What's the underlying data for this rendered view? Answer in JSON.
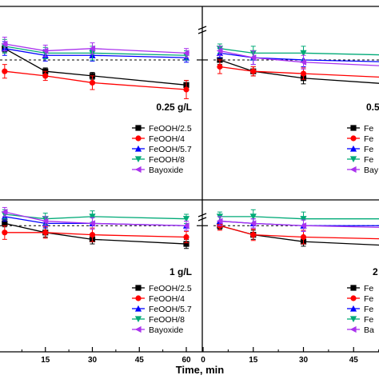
{
  "figure": {
    "xlabel": "Time, min"
  },
  "chart_data": [
    {
      "type": "line",
      "panel": "top-left",
      "annotation": "0.25 g/L",
      "xlim": [
        0,
        62
      ],
      "ylim": [
        0,
        10
      ],
      "x_ticks": [],
      "x_tick_labels": [],
      "legend_placement": "bottom-right",
      "series": [
        {
          "name": "FeOOH/2.5",
          "color": "#000000",
          "marker": "square",
          "x": [
            2,
            15,
            30,
            60
          ],
          "y": [
            6.8,
            5.8,
            5.6,
            5.2
          ],
          "err": [
            0.15,
            0.15,
            0.15,
            0.2
          ]
        },
        {
          "name": "FeOOH/4",
          "color": "#ff0000",
          "marker": "circle",
          "x": [
            2,
            15,
            30,
            60
          ],
          "y": [
            5.8,
            5.6,
            5.3,
            5.0
          ],
          "err": [
            0.3,
            0.2,
            0.3,
            0.4
          ]
        },
        {
          "name": "FeOOH/5.7",
          "color": "#0000ff",
          "marker": "triangle-up",
          "x": [
            2,
            15,
            30,
            60
          ],
          "y": [
            6.8,
            6.5,
            6.5,
            6.4
          ],
          "err": [
            0.3,
            0.25,
            0.25,
            0.2
          ]
        },
        {
          "name": "FeOOH/8",
          "color": "#00aa77",
          "marker": "triangle-down",
          "x": [
            2,
            15,
            30,
            60
          ],
          "y": [
            6.9,
            6.6,
            6.6,
            6.5
          ],
          "err": [
            0.3,
            0.25,
            0.3,
            0.2
          ]
        },
        {
          "name": "Bayoxide",
          "color": "#aa33ee",
          "marker": "triangle-left",
          "x": [
            2,
            15,
            30,
            60
          ],
          "y": [
            7.0,
            6.7,
            6.8,
            6.6
          ],
          "err": [
            0.3,
            0.25,
            0.25,
            0.2
          ]
        }
      ]
    },
    {
      "type": "line",
      "panel": "top-right",
      "annotation": "0.5",
      "xlim": [
        0,
        62
      ],
      "ylim": [
        0,
        10
      ],
      "x_ticks": [],
      "x_tick_labels": [],
      "legend_placement": "bottom-right",
      "series": [
        {
          "name": "Fe",
          "color": "#000000",
          "marker": "square",
          "x": [
            5,
            15,
            30,
            60
          ],
          "y": [
            6.3,
            5.8,
            5.5,
            5.2
          ],
          "err": [
            0.2,
            0.2,
            0.25,
            0.3
          ]
        },
        {
          "name": "Fe",
          "color": "#ff0000",
          "marker": "circle",
          "x": [
            5,
            15,
            30,
            60
          ],
          "y": [
            6.0,
            5.8,
            5.7,
            5.5
          ],
          "err": [
            0.3,
            0.2,
            0.25,
            0.3
          ]
        },
        {
          "name": "Fe",
          "color": "#0000ff",
          "marker": "triangle-up",
          "x": [
            5,
            15,
            30,
            60
          ],
          "y": [
            6.6,
            6.4,
            6.3,
            6.2
          ],
          "err": [
            0.2,
            0.3,
            0.3,
            0.2
          ]
        },
        {
          "name": "Fe",
          "color": "#00aa77",
          "marker": "triangle-down",
          "x": [
            5,
            15,
            30,
            60
          ],
          "y": [
            6.8,
            6.6,
            6.6,
            6.5
          ],
          "err": [
            0.2,
            0.3,
            0.3,
            0.2
          ]
        },
        {
          "name": "Bay",
          "color": "#aa33ee",
          "marker": "triangle-left",
          "x": [
            5,
            15,
            30,
            60
          ],
          "y": [
            6.7,
            6.4,
            6.2,
            6.0
          ],
          "err": [
            0.2,
            0.3,
            0.3,
            0.2
          ]
        }
      ]
    },
    {
      "type": "line",
      "panel": "bottom-left",
      "annotation": "1 g/L",
      "xlim": [
        0,
        62
      ],
      "ylim": [
        0,
        10
      ],
      "x_ticks": [
        15,
        30,
        45,
        60
      ],
      "x_tick_labels": [
        "15",
        "30",
        "45",
        "60"
      ],
      "legend_placement": "bottom-right",
      "series": [
        {
          "name": "FeOOH/2.5",
          "color": "#000000",
          "marker": "square",
          "x": [
            2,
            15,
            30,
            60
          ],
          "y": [
            6.6,
            6.2,
            5.9,
            5.7
          ],
          "err": [
            0.15,
            0.2,
            0.2,
            0.2
          ]
        },
        {
          "name": "FeOOH/4",
          "color": "#ff0000",
          "marker": "circle",
          "x": [
            2,
            15,
            30,
            60
          ],
          "y": [
            6.2,
            6.2,
            6.1,
            6.0
          ],
          "err": [
            0.3,
            0.25,
            0.3,
            0.25
          ]
        },
        {
          "name": "FeOOH/5.7",
          "color": "#0000ff",
          "marker": "triangle-up",
          "x": [
            2,
            15,
            30,
            60
          ],
          "y": [
            6.9,
            6.6,
            6.6,
            6.5
          ],
          "err": [
            0.2,
            0.2,
            0.25,
            0.2
          ]
        },
        {
          "name": "FeOOH/8",
          "color": "#00aa77",
          "marker": "triangle-down",
          "x": [
            2,
            15,
            30,
            60
          ],
          "y": [
            7.0,
            6.8,
            6.9,
            6.8
          ],
          "err": [
            0.2,
            0.25,
            0.25,
            0.2
          ]
        },
        {
          "name": "Bayoxide",
          "color": "#aa33ee",
          "marker": "triangle-left",
          "x": [
            2,
            15,
            30,
            60
          ],
          "y": [
            7.1,
            6.7,
            6.6,
            6.5
          ],
          "err": [
            0.2,
            0.2,
            0.25,
            0.2
          ]
        }
      ]
    },
    {
      "type": "line",
      "panel": "bottom-right",
      "annotation": "2",
      "xlim": [
        0,
        62
      ],
      "ylim": [
        0,
        10
      ],
      "x_ticks": [
        0,
        15,
        30,
        45
      ],
      "x_tick_labels": [
        "0",
        "15",
        "30",
        "45"
      ],
      "legend_placement": "bottom-right",
      "series": [
        {
          "name": "Fe",
          "color": "#000000",
          "marker": "square",
          "x": [
            5,
            15,
            30,
            60
          ],
          "y": [
            6.5,
            6.1,
            5.8,
            5.6
          ],
          "err": [
            0.15,
            0.2,
            0.2,
            0.2
          ]
        },
        {
          "name": "Fe",
          "color": "#ff0000",
          "marker": "circle",
          "x": [
            5,
            15,
            30,
            60
          ],
          "y": [
            6.5,
            6.1,
            6.0,
            5.9
          ],
          "err": [
            0.2,
            0.25,
            0.3,
            0.25
          ]
        },
        {
          "name": "Fe",
          "color": "#0000ff",
          "marker": "triangle-up",
          "x": [
            5,
            15,
            30,
            60
          ],
          "y": [
            6.7,
            6.6,
            6.5,
            6.5
          ],
          "err": [
            0.2,
            0.2,
            0.25,
            0.2
          ]
        },
        {
          "name": "Fe",
          "color": "#00aa77",
          "marker": "triangle-down",
          "x": [
            5,
            15,
            30,
            60
          ],
          "y": [
            6.9,
            6.9,
            6.8,
            6.8
          ],
          "err": [
            0.2,
            0.3,
            0.3,
            0.2
          ]
        },
        {
          "name": "Ba",
          "color": "#aa33ee",
          "marker": "triangle-left",
          "x": [
            5,
            15,
            30,
            60
          ],
          "y": [
            6.7,
            6.6,
            6.5,
            6.4
          ],
          "err": [
            0.2,
            0.2,
            0.25,
            0.2
          ]
        }
      ]
    }
  ]
}
